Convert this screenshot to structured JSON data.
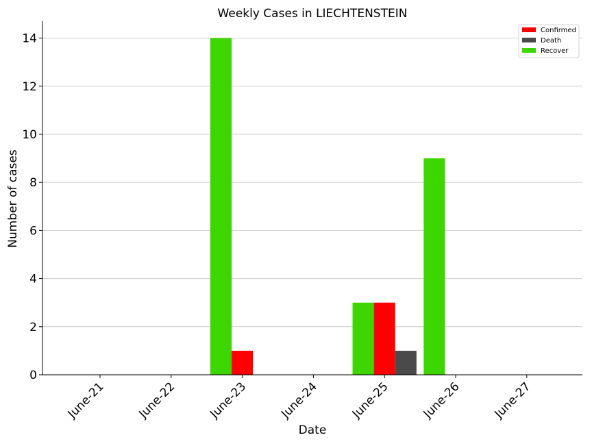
{
  "chart_data": {
    "type": "bar",
    "title": "Weekly Cases in LIECHTENSTEIN",
    "xlabel": "Date",
    "ylabel": "Number of cases",
    "categories": [
      "June-21",
      "June-22",
      "June-23",
      "June-24",
      "June-25",
      "June-26",
      "June-27"
    ],
    "series": [
      {
        "name": "Recover",
        "color": "#3dd600",
        "values": [
          0,
          0,
          14,
          0,
          3,
          9,
          0
        ]
      },
      {
        "name": "Confirmed",
        "color": "#ff0000",
        "values": [
          0,
          0,
          1,
          0,
          3,
          0,
          0
        ]
      },
      {
        "name": "Death",
        "color": "#4a4a4a",
        "values": [
          0,
          0,
          0,
          0,
          1,
          0,
          0
        ]
      }
    ],
    "legend_order": [
      "Confirmed",
      "Death",
      "Recover"
    ],
    "ylim": [
      0,
      14.7
    ],
    "yticks": [
      0,
      2,
      4,
      6,
      8,
      10,
      12,
      14
    ],
    "grid": "horizontal",
    "legend_position": "top-right"
  }
}
